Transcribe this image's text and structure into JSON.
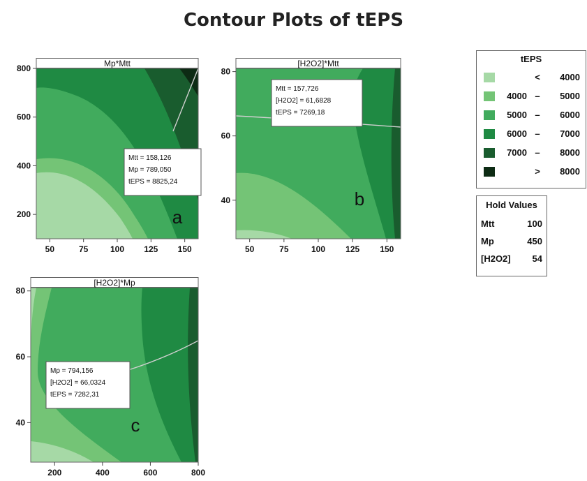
{
  "title": "Contour Plots of tEPS",
  "colors": {
    "band1": "#a6d9a6",
    "band2": "#74c476",
    "band3": "#41ab5d",
    "band4": "#1f8a43",
    "band5": "#195c2e",
    "band6": "#0d2b14",
    "frame": "#666666",
    "crosshair": "#d0d0d0"
  },
  "legend": {
    "title": "tEPS",
    "items": [
      {
        "lo": "",
        "op": "<",
        "hi": "4000",
        "color": "#a6d9a6"
      },
      {
        "lo": "4000",
        "op": "–",
        "hi": "5000",
        "color": "#74c476"
      },
      {
        "lo": "5000",
        "op": "–",
        "hi": "6000",
        "color": "#41ab5d"
      },
      {
        "lo": "6000",
        "op": "–",
        "hi": "7000",
        "color": "#1f8a43"
      },
      {
        "lo": "7000",
        "op": "–",
        "hi": "8000",
        "color": "#195c2e"
      },
      {
        "lo": "",
        "op": ">",
        "hi": "8000",
        "color": "#0d2b14"
      }
    ]
  },
  "hold_values": {
    "title": "Hold Values",
    "rows": [
      {
        "name": "Mtt",
        "value": "100"
      },
      {
        "name": "Mp",
        "value": "450"
      },
      {
        "name": "[H2O2]",
        "value": "54"
      }
    ]
  },
  "chart_data": [
    {
      "type": "contour",
      "panel_title": "Mp*Mtt",
      "letter": "a",
      "x_ticks": [
        50,
        75,
        100,
        125,
        150
      ],
      "y_ticks": [
        200,
        400,
        600,
        800
      ],
      "xlim": [
        40,
        160
      ],
      "ylim": [
        100,
        800
      ],
      "annotation": {
        "lines": [
          "Mtt = 158,126",
          "Mp = 789,050",
          "tEPS = 8825,24"
        ]
      },
      "crosshair": {
        "x": 158.126,
        "y": 789.05
      }
    },
    {
      "type": "contour",
      "panel_title": "[H2O2]*Mtt",
      "letter": "b",
      "x_ticks": [
        50,
        75,
        100,
        125,
        150
      ],
      "y_ticks": [
        40,
        60,
        80
      ],
      "xlim": [
        40,
        160
      ],
      "ylim": [
        28,
        81
      ],
      "annotation": {
        "lines": [
          "Mtt = 157,726",
          "[H2O2] = 61,6828",
          "tEPS = 7269,18"
        ]
      },
      "crosshair": {
        "x": 157.726,
        "y": 61.6828
      }
    },
    {
      "type": "contour",
      "panel_title": "[H2O2]*Mp",
      "letter": "c",
      "x_ticks": [
        200,
        400,
        600,
        800
      ],
      "y_ticks": [
        40,
        60,
        80
      ],
      "xlim": [
        100,
        800
      ],
      "ylim": [
        28,
        81
      ],
      "annotation": {
        "lines": [
          "Mp = 794,156",
          "[H2O2] = 66,0324",
          "tEPS = 7282,31"
        ]
      },
      "crosshair": {
        "x": 794.156,
        "y": 66.0324
      }
    }
  ]
}
